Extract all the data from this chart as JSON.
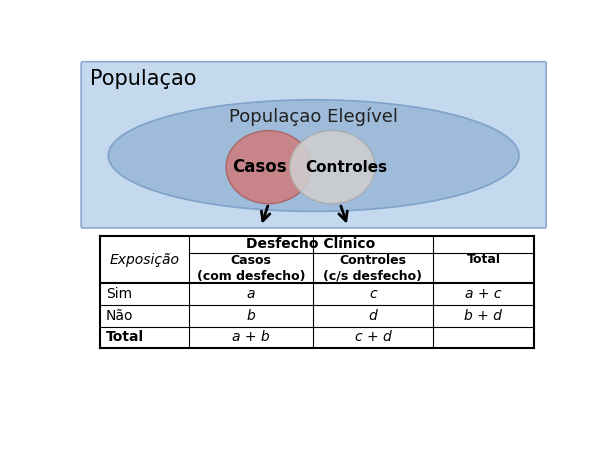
{
  "title_population": "Populaçao",
  "title_eligible": "Populaçao Elegível",
  "label_casos": "Casos",
  "label_controles": "Controles",
  "color_bg_outer": "#c5d9ee",
  "color_bg_eligible": "#9ab8d8",
  "color_casos": "#cc8080",
  "color_controles": "#d0d0d0",
  "table_header_col1": "Exposição",
  "table_header_col2": "Desfecho Clínico",
  "table_subheader_col2": "Casos\n(com desfecho)",
  "table_subheader_col3": "Controles\n(c/s desfecho)",
  "table_subheader_col4": "Total",
  "row1_label": "Sim",
  "row2_label": "Não",
  "row3_label": "Total",
  "row1_col2": "a",
  "row1_col3": "c",
  "row1_col4": "a + c",
  "row2_col2": "b",
  "row2_col3": "d",
  "row2_col4": "b + d",
  "row3_col2": "a + b",
  "row3_col3": "c + d",
  "row3_col4": ""
}
